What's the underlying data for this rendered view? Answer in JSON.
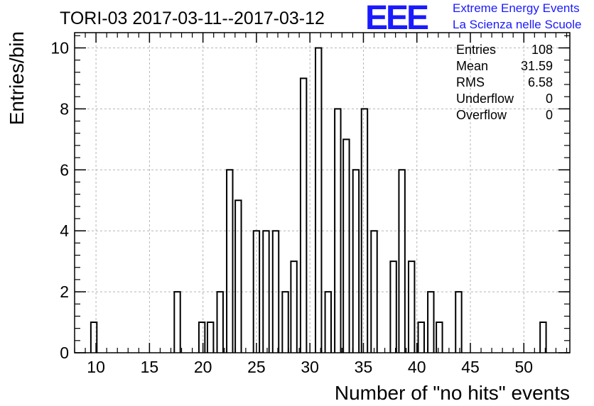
{
  "title": "TORI-03 2017-03-11--2017-03-12",
  "logo": {
    "mark": "EEE",
    "line1": "Extreme Energy Events",
    "line2": "La Scienza nelle Scuole"
  },
  "colors": {
    "logo": "#1a1aff",
    "bars": "#000000",
    "grid": "#b4b4b4"
  },
  "chart_data": {
    "type": "bar",
    "title": "TORI-03 2017-03-11--2017-03-12",
    "xlabel": "Number of \"no hits\" events",
    "ylabel": "Entries/bin",
    "xlim": [
      8,
      54.3
    ],
    "ylim": [
      0,
      10.5
    ],
    "x_ticks": [
      10,
      15,
      20,
      25,
      30,
      35,
      40,
      45,
      50
    ],
    "y_ticks": [
      0,
      2,
      4,
      6,
      8,
      10
    ],
    "grid": true,
    "bin_width": 0.56,
    "bins": [
      {
        "x": 9.8,
        "y": 1
      },
      {
        "x": 17.6,
        "y": 2
      },
      {
        "x": 19.9,
        "y": 1
      },
      {
        "x": 20.7,
        "y": 1
      },
      {
        "x": 21.6,
        "y": 2
      },
      {
        "x": 22.5,
        "y": 6
      },
      {
        "x": 23.3,
        "y": 5
      },
      {
        "x": 25.0,
        "y": 4
      },
      {
        "x": 25.9,
        "y": 4
      },
      {
        "x": 26.8,
        "y": 4
      },
      {
        "x": 27.7,
        "y": 2
      },
      {
        "x": 28.5,
        "y": 3
      },
      {
        "x": 29.4,
        "y": 9
      },
      {
        "x": 30.8,
        "y": 10
      },
      {
        "x": 31.7,
        "y": 2
      },
      {
        "x": 32.6,
        "y": 8
      },
      {
        "x": 33.4,
        "y": 7
      },
      {
        "x": 34.3,
        "y": 6
      },
      {
        "x": 35.1,
        "y": 8
      },
      {
        "x": 36.0,
        "y": 4
      },
      {
        "x": 37.8,
        "y": 3
      },
      {
        "x": 38.6,
        "y": 6
      },
      {
        "x": 39.5,
        "y": 3
      },
      {
        "x": 40.4,
        "y": 1
      },
      {
        "x": 41.3,
        "y": 2
      },
      {
        "x": 42.1,
        "y": 1
      },
      {
        "x": 43.9,
        "y": 2
      },
      {
        "x": 51.8,
        "y": 1
      }
    ],
    "stats": [
      {
        "label": "Entries",
        "value": "108"
      },
      {
        "label": "Mean",
        "value": "31.59"
      },
      {
        "label": "RMS",
        "value": "6.58"
      },
      {
        "label": "Underflow",
        "value": "0"
      },
      {
        "label": "Overflow",
        "value": "0"
      }
    ]
  }
}
